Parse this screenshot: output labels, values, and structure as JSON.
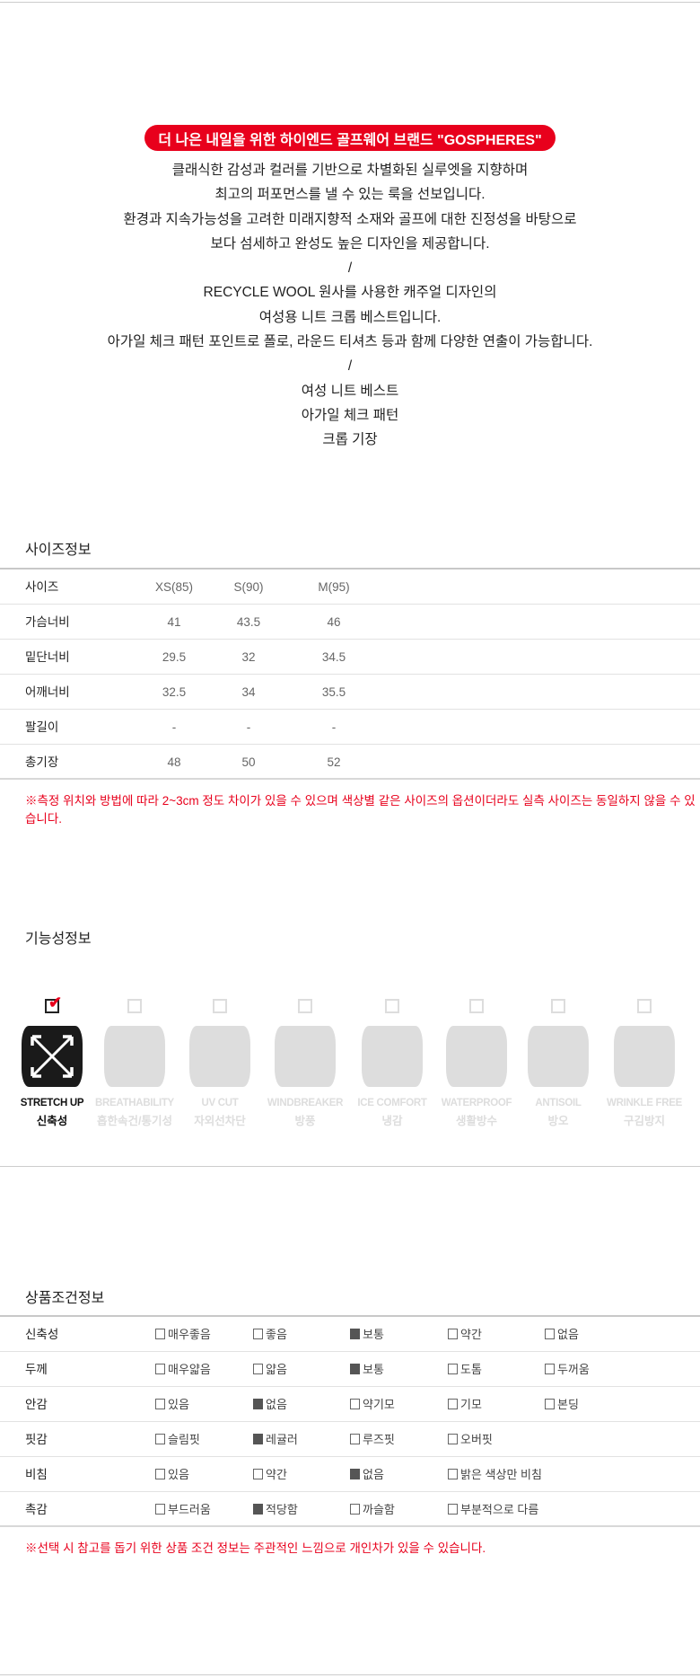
{
  "colors": {
    "accent": "#e8001c",
    "text": "#222222",
    "inactive_icon": "#dddddd"
  },
  "intro": {
    "badge": "더 나은 내일을 위한 하이엔드 골프웨어 브랜드 \"GOSPHERES\"",
    "lines": [
      "클래식한 감성과 컬러를 기반으로 차별화된 실루엣을 지향하며",
      "최고의 퍼포먼스를 낼 수 있는 룩을 선보입니다.",
      "환경과 지속가능성을 고려한 미래지향적 소재와 골프에 대한 진정성을 바탕으로",
      "보다 섬세하고 완성도 높은 디자인을 제공합니다.",
      "/",
      "RECYCLE WOOL 원사를 사용한 캐주얼 디자인의",
      "여성용 니트 크롭 베스트입니다.",
      "아가일 체크 패턴 포인트로 폴로, 라운드 티셔츠 등과 함께 다양한 연출이 가능합니다.",
      "/",
      "여성 니트 베스트",
      "아가일 체크 패턴",
      "크롭 기장"
    ]
  },
  "size_info": {
    "title": "사이즈정보",
    "rows": [
      {
        "label": "사이즈",
        "values": [
          "XS(85)",
          "S(90)",
          "M(95)"
        ]
      },
      {
        "label": "가슴너비",
        "values": [
          "41",
          "43.5",
          "46"
        ]
      },
      {
        "label": "밑단너비",
        "values": [
          "29.5",
          "32",
          "34.5"
        ]
      },
      {
        "label": "어깨너비",
        "values": [
          "32.5",
          "34",
          "35.5"
        ]
      },
      {
        "label": "팔길이",
        "values": [
          "-",
          "-",
          "-"
        ]
      },
      {
        "label": "총기장",
        "values": [
          "48",
          "50",
          "52"
        ]
      }
    ],
    "note": "※측정 위치와 방법에 따라 2~3cm 정도 차이가 있을 수 있으며 색상별 같은 사이즈의 옵션이더라도 실측 사이즈는 동일하지 않을 수 있습니다."
  },
  "function_info": {
    "title": "기능성정보",
    "items": [
      {
        "en": "STRETCH UP",
        "ko": "신축성",
        "checked": true,
        "icon": "stretch-arrows-icon"
      },
      {
        "en": "BREATHABILITY",
        "ko": "흡한속건/통기성",
        "checked": false,
        "icon": "breathability-icon"
      },
      {
        "en": "UV CUT",
        "ko": "자외선차단",
        "checked": false,
        "icon": "uv-cut-icon"
      },
      {
        "en": "WINDBREAKER",
        "ko": "방풍",
        "checked": false,
        "icon": "windbreaker-icon"
      },
      {
        "en": "ICE COMFORT",
        "ko": "냉감",
        "checked": false,
        "icon": "ice-comfort-icon"
      },
      {
        "en": "WATERPROOF",
        "ko": "생활방수",
        "checked": false,
        "icon": "waterproof-icon"
      },
      {
        "en": "ANTISOIL",
        "ko": "방오",
        "checked": false,
        "icon": "antisoil-icon"
      },
      {
        "en": "WRINKLE FREE",
        "ko": "구김방지",
        "checked": false,
        "icon": "wrinkle-free-icon"
      }
    ]
  },
  "condition_info": {
    "title": "상품조건정보",
    "rows": [
      {
        "label": "신축성",
        "options": [
          "매우좋음",
          "좋음",
          "보통",
          "약간",
          "없음"
        ],
        "selected": 2
      },
      {
        "label": "두께",
        "options": [
          "매우얇음",
          "얇음",
          "보통",
          "도톰",
          "두꺼움"
        ],
        "selected": 2
      },
      {
        "label": "안감",
        "options": [
          "있음",
          "없음",
          "약기모",
          "기모",
          "본딩"
        ],
        "selected": 1
      },
      {
        "label": "핏감",
        "options": [
          "슬림핏",
          "레귤러",
          "루즈핏",
          "오버핏"
        ],
        "selected": 1
      },
      {
        "label": "비침",
        "options": [
          "있음",
          "약간",
          "없음",
          "밝은 색상만 비침"
        ],
        "selected": 2
      },
      {
        "label": "촉감",
        "options": [
          "부드러움",
          "적당함",
          "까슬함",
          "부분적으로 다름"
        ],
        "selected": 1
      }
    ],
    "note": "※선택 시 참고를 돕기 위한 상품 조건 정보는 주관적인 느낌으로 개인차가 있을 수 있습니다."
  }
}
